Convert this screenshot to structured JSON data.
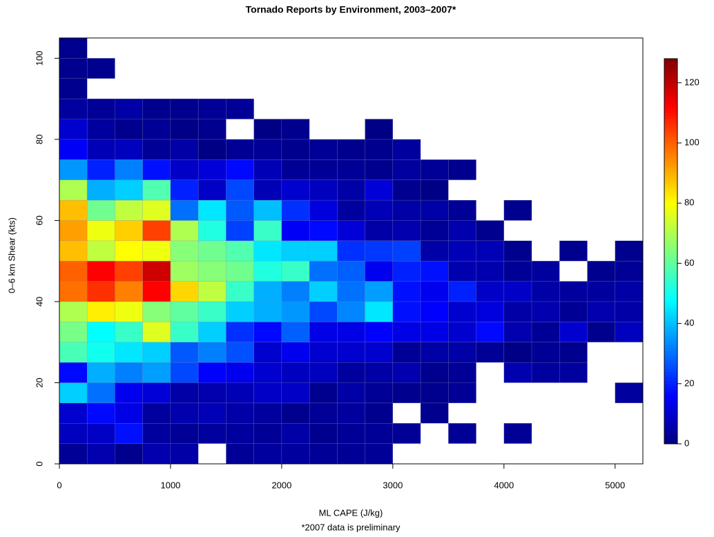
{
  "chart_data": {
    "type": "heatmap",
    "title": "Tornado Reports by Environment, 2003–2007*",
    "x_label": "ML CAPE (J/kg)",
    "y_label": "0–6 km Shear (kts)",
    "note": "*2007 data is preliminary",
    "colormap": "jet",
    "x": [
      0,
      250,
      500,
      750,
      1000,
      1250,
      1500,
      1750,
      2000,
      2250,
      2500,
      2750,
      3000,
      3250,
      3500,
      3750,
      4000,
      4250,
      4500,
      4750,
      5000
    ],
    "y": [
      0,
      5,
      10,
      15,
      20,
      25,
      30,
      35,
      40,
      45,
      50,
      55,
      60,
      65,
      70,
      75,
      80,
      85,
      90,
      95,
      100
    ],
    "xlim": [
      0,
      5250
    ],
    "ylim": [
      0,
      105
    ],
    "xticks": [
      0,
      1000,
      2000,
      3000,
      4000,
      5000
    ],
    "yticks": [
      0,
      20,
      40,
      60,
      80,
      100
    ],
    "zlim": [
      0,
      128
    ],
    "zticks": [
      0,
      20,
      40,
      60,
      80,
      100,
      120
    ],
    "values": [
      [
        3,
        6,
        2,
        6,
        5,
        null,
        3,
        4,
        4,
        3,
        3,
        3,
        null,
        null,
        null,
        null,
        null,
        null,
        null,
        null,
        null
      ],
      [
        8,
        9,
        18,
        4,
        3,
        4,
        4,
        3,
        5,
        2,
        3,
        3,
        3,
        null,
        3,
        null,
        3,
        null,
        null,
        null,
        null
      ],
      [
        10,
        17,
        13,
        4,
        6,
        7,
        5,
        4,
        2,
        3,
        4,
        2,
        null,
        2,
        null,
        null,
        null,
        null,
        null,
        null,
        null
      ],
      [
        42,
        30,
        14,
        11,
        5,
        6,
        7,
        9,
        9,
        2,
        5,
        3,
        2,
        2,
        3,
        null,
        null,
        null,
        null,
        null,
        4
      ],
      [
        17,
        38,
        32,
        36,
        25,
        16,
        14,
        10,
        8,
        8,
        4,
        5,
        6,
        2,
        3,
        null,
        6,
        4,
        4,
        null,
        null
      ],
      [
        57,
        50,
        45,
        42,
        27,
        32,
        26,
        10,
        14,
        10,
        10,
        10,
        3,
        5,
        5,
        3,
        1,
        3,
        2,
        null,
        null
      ],
      [
        63,
        48,
        55,
        76,
        55,
        42,
        22,
        17,
        28,
        13,
        13,
        16,
        13,
        13,
        10,
        17,
        6,
        3,
        10,
        2,
        8
      ],
      [
        70,
        82,
        78,
        65,
        60,
        55,
        42,
        38,
        35,
        25,
        33,
        45,
        18,
        16,
        10,
        12,
        5,
        6,
        3,
        6,
        5
      ],
      [
        98,
        106,
        96,
        112,
        85,
        72,
        55,
        38,
        32,
        42,
        30,
        36,
        18,
        14,
        20,
        9,
        9,
        5,
        4,
        4,
        5
      ],
      [
        100,
        112,
        104,
        118,
        68,
        65,
        62,
        52,
        55,
        30,
        28,
        14,
        20,
        18,
        6,
        6,
        3,
        4,
        null,
        2,
        3
      ],
      [
        88,
        72,
        80,
        78,
        65,
        62,
        58,
        45,
        42,
        42,
        22,
        23,
        24,
        5,
        7,
        7,
        2,
        null,
        2,
        null,
        2
      ],
      [
        92,
        78,
        86,
        104,
        70,
        52,
        24,
        55,
        15,
        17,
        11,
        5,
        6,
        3,
        6,
        2,
        null,
        null,
        null,
        null,
        null
      ],
      [
        88,
        62,
        72,
        76,
        30,
        45,
        27,
        40,
        22,
        12,
        4,
        7,
        5,
        5,
        3,
        null,
        2,
        null,
        null,
        null,
        null
      ],
      [
        70,
        38,
        42,
        58,
        20,
        9,
        25,
        7,
        10,
        8,
        5,
        11,
        2,
        1,
        null,
        null,
        null,
        null,
        null,
        null,
        null
      ],
      [
        35,
        20,
        32,
        18,
        9,
        11,
        17,
        7,
        3,
        3,
        3,
        2,
        4,
        3,
        2,
        null,
        null,
        null,
        null,
        null,
        null
      ],
      [
        15,
        7,
        8,
        3,
        5,
        1,
        3,
        3,
        2,
        3,
        2,
        2,
        4,
        null,
        null,
        null,
        null,
        null,
        null,
        null,
        null
      ],
      [
        10,
        4,
        2,
        3,
        1,
        2,
        null,
        1,
        2,
        null,
        null,
        1,
        null,
        null,
        null,
        null,
        null,
        null,
        null,
        null,
        null
      ],
      [
        4,
        3,
        5,
        2,
        2,
        3,
        3,
        null,
        null,
        null,
        null,
        null,
        null,
        null,
        null,
        null,
        null,
        null,
        null,
        null,
        null
      ],
      [
        2,
        null,
        null,
        null,
        null,
        null,
        null,
        null,
        null,
        null,
        null,
        null,
        null,
        null,
        null,
        null,
        null,
        null,
        null,
        null,
        null
      ],
      [
        2,
        2,
        null,
        null,
        null,
        null,
        null,
        null,
        null,
        null,
        null,
        null,
        null,
        null,
        null,
        null,
        null,
        null,
        null,
        null,
        null
      ],
      [
        2,
        null,
        null,
        null,
        null,
        null,
        null,
        null,
        null,
        null,
        null,
        null,
        null,
        null,
        null,
        null,
        null,
        null,
        null,
        null,
        null
      ]
    ]
  }
}
